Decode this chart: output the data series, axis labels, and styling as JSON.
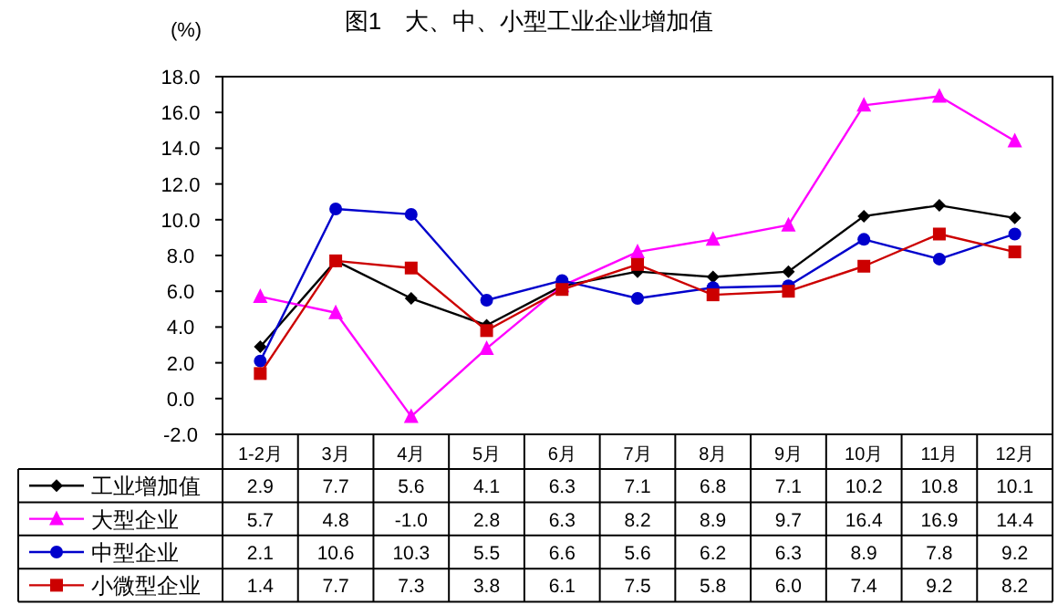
{
  "chart_data": {
    "type": "line",
    "title": "图1　大、中、小型工业企业增加值",
    "ylabel": "(%)",
    "categories": [
      "1-2月",
      "3月",
      "4月",
      "5月",
      "6月",
      "7月",
      "8月",
      "9月",
      "10月",
      "11月",
      "12月"
    ],
    "series": [
      {
        "name": "工业增加值",
        "color": "#000000",
        "marker": "diamond",
        "values": [
          2.9,
          7.7,
          5.6,
          4.1,
          6.3,
          7.1,
          6.8,
          7.1,
          10.2,
          10.8,
          10.1
        ],
        "value_labels": [
          "2.9",
          "7.7",
          "5.6",
          "4.1",
          "6.3",
          "7.1",
          "6.8",
          "7.1",
          "10.2",
          "10.8",
          "10.1"
        ]
      },
      {
        "name": "大型企业",
        "color": "#ff00ff",
        "marker": "triangle",
        "values": [
          5.7,
          4.8,
          -1.0,
          2.8,
          6.3,
          8.2,
          8.9,
          9.7,
          16.4,
          16.9,
          14.4
        ],
        "value_labels": [
          "5.7",
          "4.8",
          "-1.0",
          "2.8",
          "6.3",
          "8.2",
          "8.9",
          "9.7",
          "16.4",
          "16.9",
          "14.4"
        ]
      },
      {
        "name": "中型企业",
        "color": "#0000cc",
        "marker": "circle",
        "values": [
          2.1,
          10.6,
          10.3,
          5.5,
          6.6,
          5.6,
          6.2,
          6.3,
          8.9,
          7.8,
          9.2
        ],
        "value_labels": [
          "2.1",
          "10.6",
          "10.3",
          "5.5",
          "6.6",
          "5.6",
          "6.2",
          "6.3",
          "8.9",
          "7.8",
          "9.2"
        ]
      },
      {
        "name": "小微型企业",
        "color": "#cc0000",
        "marker": "square",
        "values": [
          1.4,
          7.7,
          7.3,
          3.8,
          6.1,
          7.5,
          5.8,
          6.0,
          7.4,
          9.2,
          8.2
        ],
        "value_labels": [
          "1.4",
          "7.7",
          "7.3",
          "3.8",
          "6.1",
          "7.5",
          "5.8",
          "6.0",
          "7.4",
          "9.2",
          "8.2"
        ]
      }
    ],
    "ylim": [
      -2,
      18
    ],
    "yticks": [
      {
        "value": -2,
        "label": "-2.0"
      },
      {
        "value": 0,
        "label": "0.0"
      },
      {
        "value": 2,
        "label": "2.0"
      },
      {
        "value": 4,
        "label": "4.0"
      },
      {
        "value": 6,
        "label": "6.0"
      },
      {
        "value": 8,
        "label": "8.0"
      },
      {
        "value": 10,
        "label": "10.0"
      },
      {
        "value": 12,
        "label": "12.0"
      },
      {
        "value": 14,
        "label": "14.0"
      },
      {
        "value": 16,
        "label": "16.0"
      },
      {
        "value": 18,
        "label": "18.0"
      }
    ],
    "legend": "bottom",
    "grid": false
  }
}
